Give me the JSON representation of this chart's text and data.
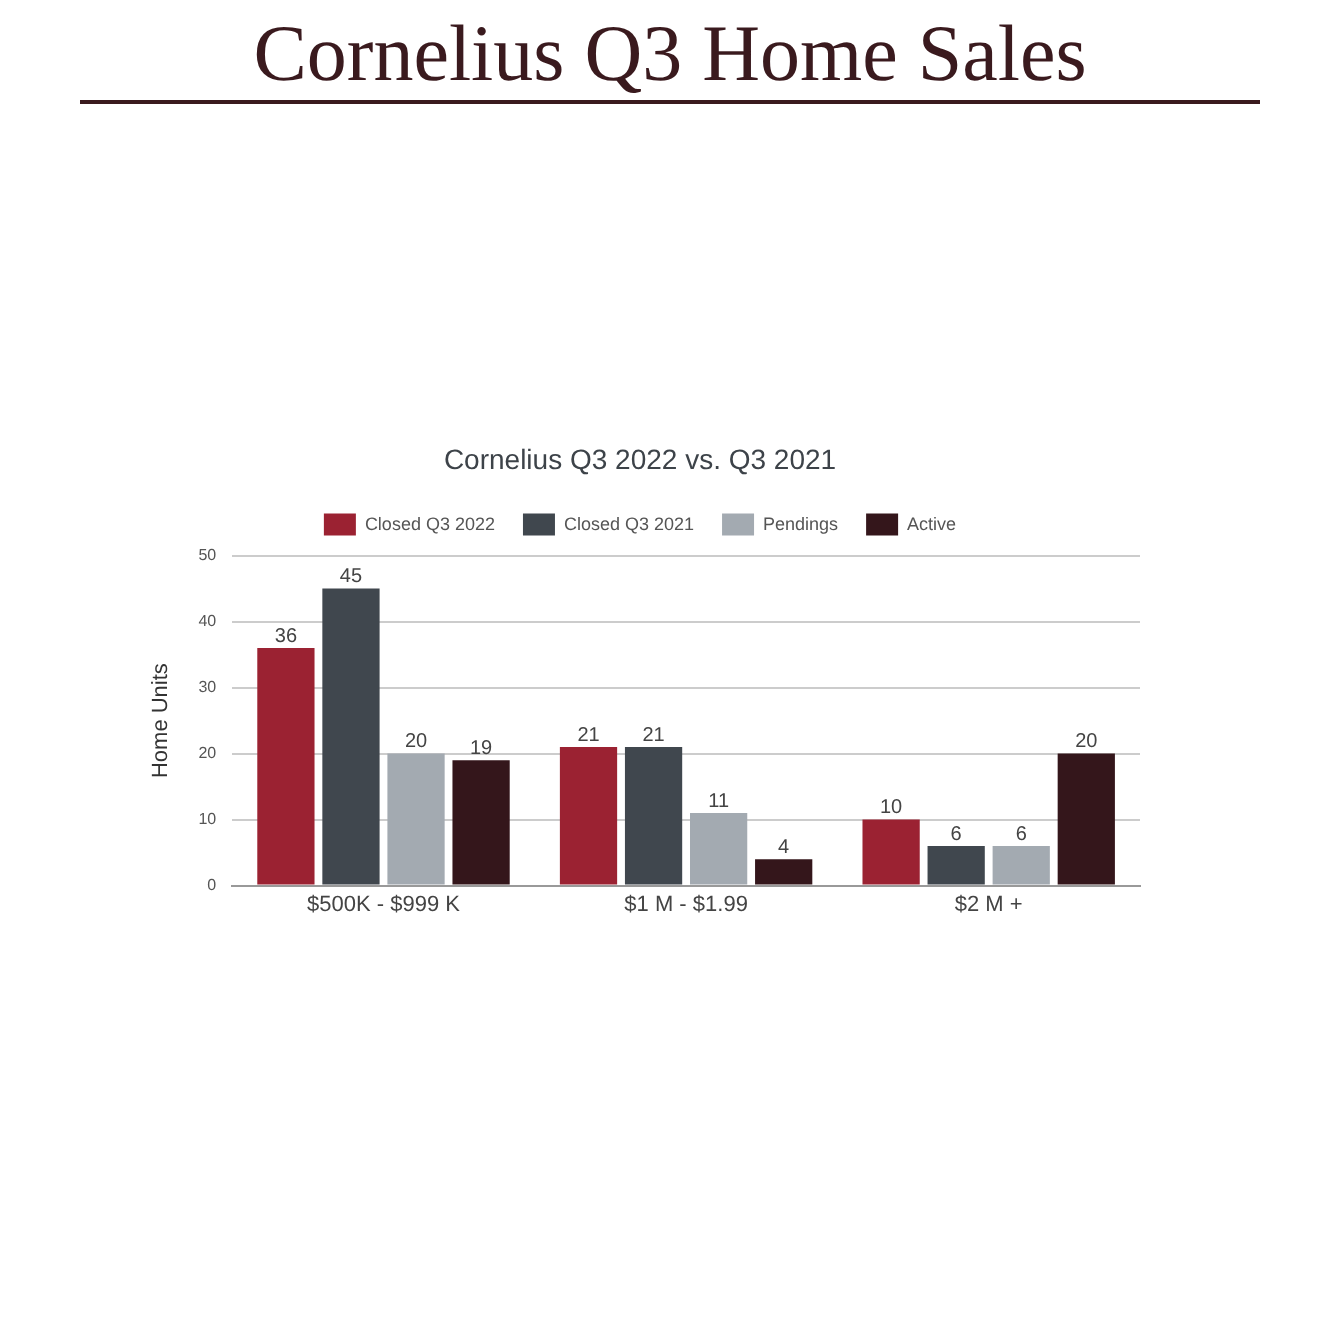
{
  "chart_data": {
    "type": "bar",
    "title": "Cornelius Q3 Home Sales",
    "subtitle": "Cornelius Q3 2022 vs. Q3 2021",
    "ylabel": "Home Units",
    "categories": [
      "$500K - $999 K",
      "$1 M - $1.99",
      "$2 M +"
    ],
    "series": [
      {
        "name": "Closed Q3 2022",
        "color": "#9b2232",
        "values": [
          36,
          21,
          10
        ]
      },
      {
        "name": "Closed Q3 2021",
        "color": "#40474e",
        "values": [
          45,
          21,
          6
        ]
      },
      {
        "name": "Pendings",
        "color": "#a3aab1",
        "values": [
          20,
          11,
          6
        ]
      },
      {
        "name": "Active",
        "color": "#34161b",
        "values": [
          19,
          4,
          20
        ]
      }
    ],
    "ylim": [
      0,
      50
    ],
    "yticks": [
      0,
      10,
      20,
      30,
      40,
      50
    ],
    "grid": "y",
    "legend": "top",
    "data_labels": true
  }
}
